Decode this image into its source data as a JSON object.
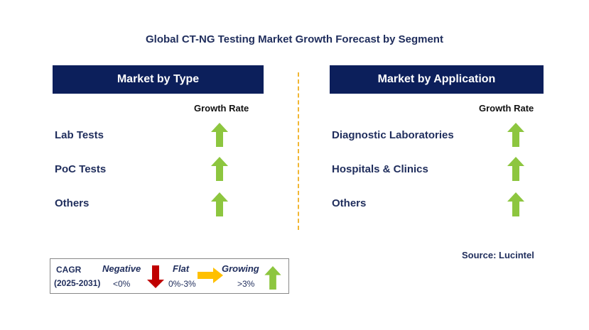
{
  "title": "Global CT-NG Testing Market Growth Forecast by Segment",
  "left_panel": {
    "header": "Market by Type",
    "growth_label": "Growth Rate",
    "rows": [
      {
        "label": "Lab Tests",
        "trend": "growing"
      },
      {
        "label": "PoC Tests",
        "trend": "growing"
      },
      {
        "label": "Others",
        "trend": "growing"
      }
    ]
  },
  "right_panel": {
    "header": "Market by Application",
    "growth_label": "Growth Rate",
    "rows": [
      {
        "label": "Diagnostic Laboratories",
        "trend": "growing"
      },
      {
        "label": "Hospitals & Clinics",
        "trend": "growing"
      },
      {
        "label": "Others",
        "trend": "growing"
      }
    ]
  },
  "source": "Source: Lucintel",
  "legend": {
    "cagr": "CAGR",
    "period": "(2025-2031)",
    "negative": "Negative",
    "negative_range": "<0%",
    "flat": "Flat",
    "flat_range": "0%-3%",
    "growing": "Growing",
    "growing_range": ">3%"
  },
  "colors": {
    "header_bg": "#0c1f5b",
    "text_navy": "#1f2d5c",
    "arrow_up": "#8dc63f",
    "arrow_down": "#c00000",
    "arrow_right": "#ffc000",
    "divider": "#f2b632"
  },
  "icons": {
    "up": "green-up-arrow-icon",
    "down": "red-down-arrow-icon",
    "right": "yellow-right-arrow-icon"
  }
}
